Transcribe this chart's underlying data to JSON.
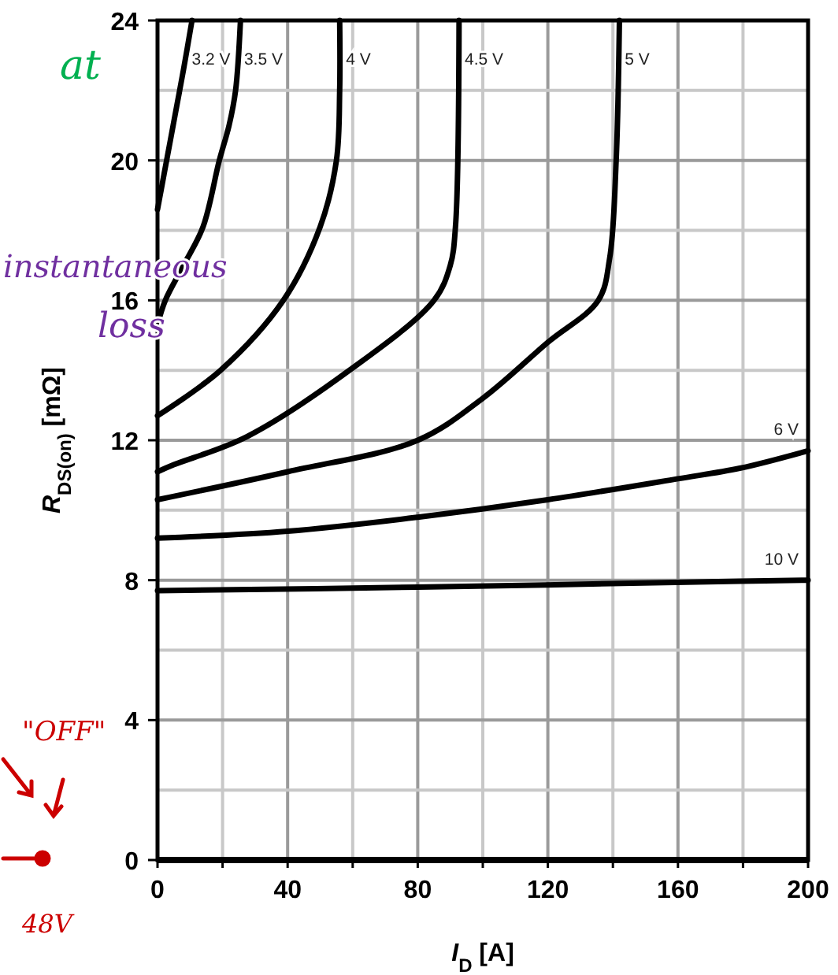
{
  "chart_data": {
    "type": "line",
    "xlabel": "I$_{D}$ [A]",
    "ylabel": "R$_{DS(on)}$  [mΩ]",
    "xlim": [
      0,
      200
    ],
    "ylim": [
      0,
      24
    ],
    "xticks": [
      0,
      {
        "value": 20,
        "label": null
      },
      40,
      {
        "value": 60,
        "label": null
      },
      80,
      {
        "value": 100,
        "label": null
      },
      120,
      {
        "value": 140,
        "label": null
      },
      160,
      {
        "value": 180,
        "label": null
      },
      200
    ],
    "yticks": [
      0,
      {
        "value": 2,
        "label": null
      },
      4,
      {
        "value": 6,
        "label": null
      },
      8,
      {
        "value": 10,
        "label": null
      },
      12,
      {
        "value": 14,
        "label": null
      },
      16,
      {
        "value": 18,
        "label": null
      },
      20,
      {
        "value": 22,
        "label": null
      },
      24
    ],
    "grid": true,
    "line_style": "solid",
    "series": [
      {
        "name": "3.2 V",
        "color": "#000000",
        "x": [
          0,
          2,
          4,
          6,
          8,
          10.6
        ],
        "values": [
          18.6,
          19.6,
          20.6,
          21.6,
          22.6,
          24
        ]
      },
      {
        "name": "3.5 V",
        "color": "#000000",
        "x": [
          0,
          2.4,
          8,
          14,
          19,
          22,
          24,
          25.5
        ],
        "values": [
          15.3,
          16,
          17,
          18.1,
          20,
          21,
          22,
          24
        ]
      },
      {
        "name": "4 V",
        "color": "#000000",
        "x": [
          0,
          19.4,
          38.7,
          50,
          55,
          56,
          56
        ],
        "values": [
          12.7,
          14,
          16,
          18.1,
          20,
          22,
          24
        ]
      },
      {
        "name": "4.5 V",
        "color": "#000000",
        "x": [
          0,
          5,
          27.4,
          59,
          85,
          90,
          91.6,
          92.7
        ],
        "values": [
          11.1,
          11.3,
          12.1,
          14,
          16,
          17,
          18.1,
          24
        ]
      },
      {
        "name": "5 V",
        "color": "#000000",
        "x": [
          0,
          40,
          80,
          100,
          120,
          135.5,
          139,
          141,
          142
        ],
        "values": [
          10.3,
          11.1,
          12,
          13.2,
          14.8,
          16,
          17.2,
          20,
          24
        ]
      },
      {
        "name": "6 V",
        "color": "#000000",
        "x": [
          0,
          40,
          80,
          120,
          160,
          179,
          200
        ],
        "values": [
          9.2,
          9.4,
          9.8,
          10.3,
          10.9,
          11.2,
          11.7
        ]
      },
      {
        "name": "10 V",
        "color": "#000000",
        "x": [
          0,
          80,
          179,
          200
        ],
        "values": [
          7.7,
          7.8,
          7.97,
          8
        ]
      }
    ],
    "annotations": [
      "at",
      "instantaneous",
      "loss",
      "\"OFF\"",
      "48V"
    ]
  }
}
